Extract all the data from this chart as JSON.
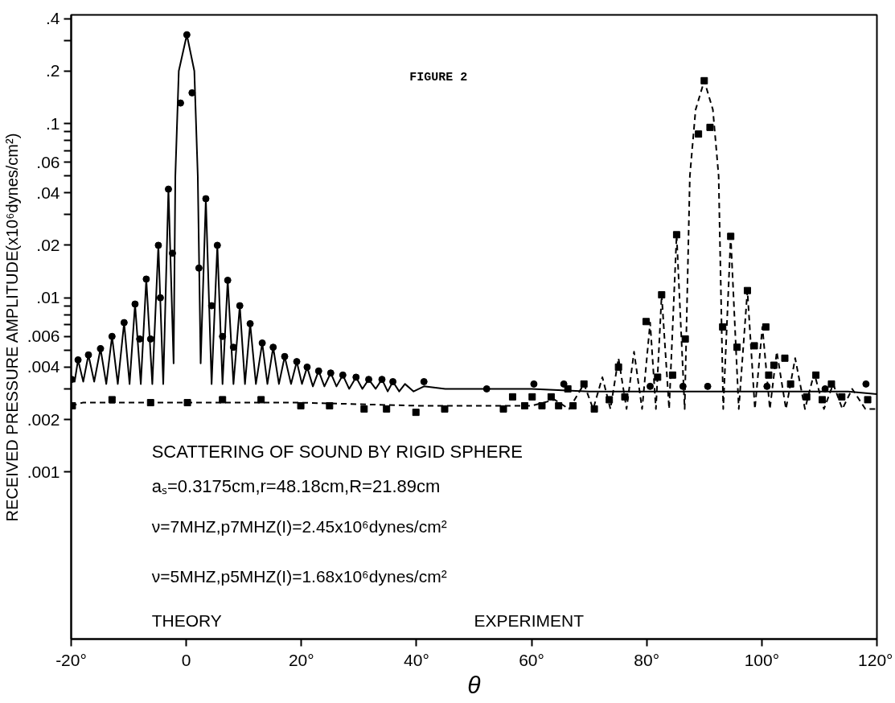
{
  "chart_data": {
    "type": "line",
    "title": "SCATTERING OF SOUND BY RIGID SPHERE",
    "subtitle": "aₛ=0.3175cm,r=48.18cm,R=21.89cm",
    "xlabel": "θ",
    "ylabel": "RECEIVED PRESSURE AMPLITUDE(x10⁶dynes/cm²)",
    "annotations": [
      "FIGURE 2",
      "ν=7MHZ,p7MHZ(I)=2.45x10⁶dynes/cm²",
      "ν=5MHZ,p5MHZ(I)=1.68x10⁶dynes/cm²",
      "THEORY",
      "EXPERIMENT"
    ],
    "log": true,
    "xlim": [
      -20,
      120
    ],
    "ylim": [
      0.00011,
      0.42
    ],
    "xticks": [
      {
        "value": -20,
        "label": "-20°"
      },
      0,
      {
        "value": 20,
        "label": "20°"
      },
      {
        "value": 40,
        "label": "40°"
      },
      {
        "value": 60,
        "label": "60°"
      },
      {
        "value": 80,
        "label": "80°"
      },
      {
        "value": 100,
        "label": "100°"
      },
      {
        "value": 120,
        "label": "120°"
      }
    ],
    "yticks": [
      {
        "value": 0.001,
        "label": ".001"
      },
      {
        "value": 0.002,
        "label": ".002"
      },
      {
        "value": 0.003,
        "label": null
      },
      {
        "value": 0.004,
        "label": ".004"
      },
      {
        "value": 0.005,
        "label": null
      },
      {
        "value": 0.006,
        "label": ".006"
      },
      {
        "value": 0.007,
        "label": null
      },
      {
        "value": 0.008,
        "label": null
      },
      {
        "value": 0.009,
        "label": null
      },
      {
        "value": 0.01,
        "label": ".01"
      },
      {
        "value": 0.02,
        "label": ".02"
      },
      {
        "value": 0.03,
        "label": null
      },
      {
        "value": 0.04,
        "label": ".04"
      },
      {
        "value": 0.05,
        "label": null
      },
      {
        "value": 0.06,
        "label": ".06"
      },
      {
        "value": 0.07,
        "label": null
      },
      {
        "value": 0.08,
        "label": null
      },
      {
        "value": 0.09,
        "label": null
      },
      {
        "value": 0.1,
        "label": ".1"
      },
      {
        "value": 0.2,
        "label": ".2"
      },
      {
        "value": 0.3,
        "label": null
      },
      {
        "value": 0.4,
        "label": ".4"
      }
    ],
    "series": [
      {
        "line_style": "solid",
        "color": "#000000",
        "x": [
          -20,
          -19.4,
          -18.8,
          -17.9,
          -17,
          -16,
          -14.9,
          -13.9,
          -12.9,
          -11.9,
          -10.8,
          -9.85,
          -8.9,
          -7.9,
          -6.95,
          -5.9,
          -4.85,
          -4,
          -3.1,
          -2.2,
          -1.9,
          -1.3,
          0.1,
          1.4,
          2.0,
          2.5,
          3.4,
          4.4,
          5.4,
          6.3,
          7.2,
          8.2,
          9.3,
          10.2,
          11.1,
          12.1,
          13.2,
          14.1,
          15.1,
          16.1,
          17.1,
          18.2,
          19.2,
          20.1,
          21,
          22,
          23,
          24,
          25.1,
          26.1,
          27.2,
          28.3,
          29.5,
          30.6,
          31.7,
          32.9,
          34,
          35,
          35.9,
          37,
          38,
          39.5,
          41.3,
          45,
          50,
          55,
          60,
          70,
          80,
          90,
          100,
          110,
          115,
          120
        ],
        "values": [
          0.0034,
          0.0033,
          0.0044,
          0.0033,
          0.0047,
          0.0033,
          0.0051,
          0.0032,
          0.006,
          0.0032,
          0.0072,
          0.0032,
          0.0092,
          0.0032,
          0.0128,
          0.0032,
          0.02,
          0.0032,
          0.042,
          0.0042,
          0.05,
          0.2,
          0.323,
          0.2,
          0.05,
          0.0042,
          0.037,
          0.0032,
          0.02,
          0.0032,
          0.0126,
          0.0032,
          0.009,
          0.0032,
          0.0071,
          0.0032,
          0.0055,
          0.0032,
          0.0052,
          0.0032,
          0.0046,
          0.0032,
          0.0043,
          0.0032,
          0.004,
          0.0031,
          0.0038,
          0.0031,
          0.0037,
          0.0031,
          0.0036,
          0.003,
          0.0035,
          0.003,
          0.0034,
          0.003,
          0.0034,
          0.0029,
          0.0033,
          0.0029,
          0.0032,
          0.0029,
          0.0031,
          0.003,
          0.003,
          0.003,
          0.003,
          0.0029,
          0.0029,
          0.0029,
          0.0029,
          0.0029,
          0.0029,
          0.0028
        ]
      },
      {
        "line_style": "dashed",
        "color": "#000000",
        "x": [
          -20,
          -18,
          0,
          20,
          40,
          55,
          60,
          64,
          66.5,
          69.1,
          70.7,
          72.3,
          73.7,
          75.1,
          76.5,
          77.8,
          79.2,
          80.6,
          81.6,
          82.6,
          83.9,
          85.2,
          86.6,
          87.5,
          88.5,
          90,
          91.5,
          92.5,
          93.3,
          94.6,
          96,
          97.5,
          98.8,
          100.1,
          101.4,
          102.6,
          104.2,
          105.8,
          107.5,
          109.1,
          110.8,
          112.4,
          114,
          115.7,
          118,
          120
        ],
        "values": [
          0.0024,
          0.0025,
          0.0025,
          0.0025,
          0.0024,
          0.0024,
          0.0024,
          0.0026,
          0.0023,
          0.0032,
          0.0023,
          0.0035,
          0.0023,
          0.0045,
          0.0023,
          0.0049,
          0.0023,
          0.0072,
          0.0023,
          0.0104,
          0.0023,
          0.023,
          0.0023,
          0.05,
          0.12,
          0.176,
          0.12,
          0.05,
          0.0023,
          0.0225,
          0.0023,
          0.011,
          0.0023,
          0.0068,
          0.0023,
          0.0049,
          0.0023,
          0.0045,
          0.0023,
          0.0037,
          0.0023,
          0.0032,
          0.0023,
          0.003,
          0.0023,
          0.0023
        ]
      },
      {
        "type": "scatter",
        "marker": "circle",
        "color": "#000000",
        "x": [
          -19.9,
          -18.8,
          -17,
          -14.9,
          -12.9,
          -10.8,
          -8.9,
          -8.1,
          -6.95,
          -6.2,
          -4.85,
          -4.5,
          -3.1,
          -2.4,
          -1.0,
          0.1,
          1.0,
          2.2,
          3.4,
          4.4,
          5.4,
          6.3,
          7.2,
          8.2,
          9.3,
          11.1,
          13.2,
          15.1,
          17.1,
          19.2,
          21,
          23,
          25.1,
          27.2,
          29.5,
          31.7,
          34,
          35.9,
          41.3,
          52.2,
          60.4,
          65.6,
          80.6,
          86.3,
          90.6,
          100.9,
          111,
          118.1
        ],
        "values": [
          0.0034,
          0.0044,
          0.0047,
          0.0051,
          0.006,
          0.0072,
          0.0092,
          0.0058,
          0.0128,
          0.0058,
          0.02,
          0.01,
          0.042,
          0.018,
          0.131,
          0.323,
          0.15,
          0.0148,
          0.037,
          0.009,
          0.02,
          0.006,
          0.0126,
          0.0052,
          0.009,
          0.0071,
          0.0055,
          0.0052,
          0.0046,
          0.0043,
          0.004,
          0.0038,
          0.0037,
          0.0036,
          0.0035,
          0.0034,
          0.0034,
          0.0033,
          0.0033,
          0.003,
          0.0032,
          0.0032,
          0.0031,
          0.0031,
          0.0031,
          0.0031,
          0.003,
          0.0032
        ]
      },
      {
        "type": "scatter",
        "marker": "square",
        "color": "#000000",
        "x": [
          -19.8,
          -12.9,
          -6.2,
          0.2,
          6.3,
          13,
          19.9,
          24.9,
          30.9,
          34.8,
          39.9,
          44.9,
          55.1,
          56.7,
          58.8,
          60.1,
          61.8,
          63.4,
          64.7,
          66.3,
          67.2,
          69.1,
          70.9,
          73.5,
          75.1,
          76.2,
          79.9,
          81.9,
          82.6,
          84.5,
          85.2,
          86.7,
          89,
          90,
          91,
          93.2,
          94.6,
          95.7,
          97.5,
          98.7,
          100.7,
          101.2,
          102.1,
          104,
          105,
          107.8,
          109.4,
          110.5,
          112.1,
          113.9,
          118.4
        ],
        "values": [
          0.0024,
          0.0026,
          0.0025,
          0.0025,
          0.0026,
          0.0026,
          0.0024,
          0.0024,
          0.0023,
          0.0023,
          0.0022,
          0.0023,
          0.0023,
          0.0027,
          0.0024,
          0.0027,
          0.0024,
          0.0027,
          0.0024,
          0.003,
          0.0024,
          0.0032,
          0.0023,
          0.0026,
          0.004,
          0.0027,
          0.0073,
          0.0035,
          0.0104,
          0.0036,
          0.023,
          0.0058,
          0.087,
          0.176,
          0.095,
          0.0068,
          0.0225,
          0.0052,
          0.011,
          0.0053,
          0.0068,
          0.0036,
          0.0041,
          0.0045,
          0.0032,
          0.0027,
          0.0036,
          0.0026,
          0.0032,
          0.0027,
          0.0026
        ]
      }
    ]
  }
}
